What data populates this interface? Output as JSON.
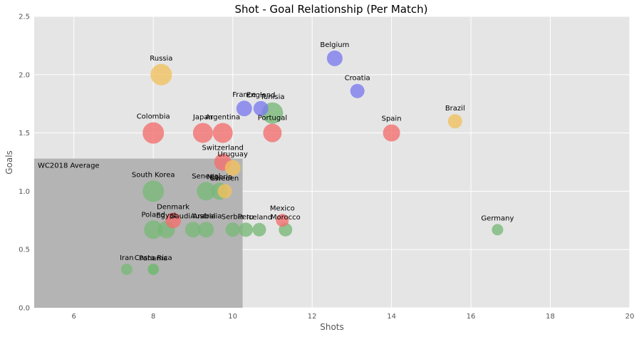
{
  "chart_data": {
    "type": "scatter",
    "title": "Shot - Goal Relationship (Per Match)",
    "xlabel": "Shots",
    "ylabel": "Goals",
    "xlim": [
      5,
      20
    ],
    "ylim": [
      0,
      2.5
    ],
    "xticks": [
      6,
      8,
      10,
      12,
      14,
      16,
      18,
      20
    ],
    "yticks": [
      0.0,
      0.5,
      1.0,
      1.5,
      2.0,
      2.5
    ],
    "xtick_labels": [
      "6",
      "8",
      "10",
      "12",
      "14",
      "16",
      "18",
      "20"
    ],
    "ytick_labels": [
      "0.0",
      "0.5",
      "1.0",
      "1.5",
      "2.0",
      "2.5"
    ],
    "grid": true,
    "average_box": {
      "label": "WC2018 Average",
      "shots": 10.25,
      "goals": 1.28
    },
    "colors": {
      "red": "#f46e6e",
      "blue": "#7b7bf0",
      "orange": "#f2c25e",
      "green": "#77b877",
      "background": "#e5e5e5",
      "average_box": "#b4b4b4"
    },
    "points": [
      {
        "team": "Russia",
        "shots": 8.2,
        "goals": 2.0,
        "size": 30,
        "color": "orange"
      },
      {
        "team": "Belgium",
        "shots": 12.57,
        "goals": 2.14,
        "size": 22,
        "color": "blue"
      },
      {
        "team": "Croatia",
        "shots": 13.14,
        "goals": 1.86,
        "size": 20,
        "color": "blue"
      },
      {
        "team": "France",
        "shots": 10.29,
        "goals": 1.71,
        "size": 22,
        "color": "blue"
      },
      {
        "team": "England",
        "shots": 10.71,
        "goals": 1.71,
        "size": 21,
        "color": "blue"
      },
      {
        "team": "Tunisia",
        "shots": 11.0,
        "goals": 1.67,
        "size": 30,
        "color": "green"
      },
      {
        "team": "Brazil",
        "shots": 15.6,
        "goals": 1.6,
        "size": 20,
        "color": "orange"
      },
      {
        "team": "Colombia",
        "shots": 8.0,
        "goals": 1.5,
        "size": 30,
        "color": "red"
      },
      {
        "team": "Japan",
        "shots": 9.25,
        "goals": 1.5,
        "size": 28,
        "color": "red"
      },
      {
        "team": "Argentina",
        "shots": 9.75,
        "goals": 1.5,
        "size": 28,
        "color": "red"
      },
      {
        "team": "Portugal",
        "shots": 11.0,
        "goals": 1.5,
        "size": 26,
        "color": "red"
      },
      {
        "team": "Spain",
        "shots": 14.0,
        "goals": 1.5,
        "size": 24,
        "color": "red"
      },
      {
        "team": "Switzerland",
        "shots": 9.75,
        "goals": 1.25,
        "size": 24,
        "color": "red"
      },
      {
        "team": "Uruguay",
        "shots": 10.0,
        "goals": 1.2,
        "size": 22,
        "color": "orange"
      },
      {
        "team": "South Korea",
        "shots": 8.0,
        "goals": 1.0,
        "size": 30,
        "color": "green"
      },
      {
        "team": "Senegal",
        "shots": 9.33,
        "goals": 1.0,
        "size": 26,
        "color": "green"
      },
      {
        "team": "Nigeria",
        "shots": 9.67,
        "goals": 1.0,
        "size": 24,
        "color": "green"
      },
      {
        "team": "Sweden",
        "shots": 9.8,
        "goals": 1.0,
        "size": 20,
        "color": "orange"
      },
      {
        "team": "Denmark",
        "shots": 8.5,
        "goals": 0.75,
        "size": 22,
        "color": "red"
      },
      {
        "team": "Mexico",
        "shots": 11.25,
        "goals": 0.75,
        "size": 18,
        "color": "red"
      },
      {
        "team": "Poland",
        "shots": 8.0,
        "goals": 0.67,
        "size": 26,
        "color": "green"
      },
      {
        "team": "Egypt",
        "shots": 8.33,
        "goals": 0.67,
        "size": 24,
        "color": "green"
      },
      {
        "team": "Saudi Arabia",
        "shots": 9.0,
        "goals": 0.67,
        "size": 22,
        "color": "green"
      },
      {
        "team": "Australia",
        "shots": 9.33,
        "goals": 0.67,
        "size": 22,
        "color": "green"
      },
      {
        "team": "Serbia",
        "shots": 10.0,
        "goals": 0.67,
        "size": 20,
        "color": "green"
      },
      {
        "team": "Peru",
        "shots": 10.33,
        "goals": 0.67,
        "size": 20,
        "color": "green"
      },
      {
        "team": "Iceland",
        "shots": 10.67,
        "goals": 0.67,
        "size": 19,
        "color": "green"
      },
      {
        "team": "Morocco",
        "shots": 11.33,
        "goals": 0.67,
        "size": 19,
        "color": "green"
      },
      {
        "team": "Germany",
        "shots": 16.67,
        "goals": 0.67,
        "size": 16,
        "color": "green"
      },
      {
        "team": "Iran",
        "shots": 7.33,
        "goals": 0.33,
        "size": 16,
        "color": "green"
      },
      {
        "team": "Costa Rica",
        "shots": 8.0,
        "goals": 0.33,
        "size": 16,
        "color": "green"
      },
      {
        "team": "Panama",
        "shots": 8.0,
        "goals": 0.33,
        "size": 15,
        "color": "green"
      }
    ]
  }
}
